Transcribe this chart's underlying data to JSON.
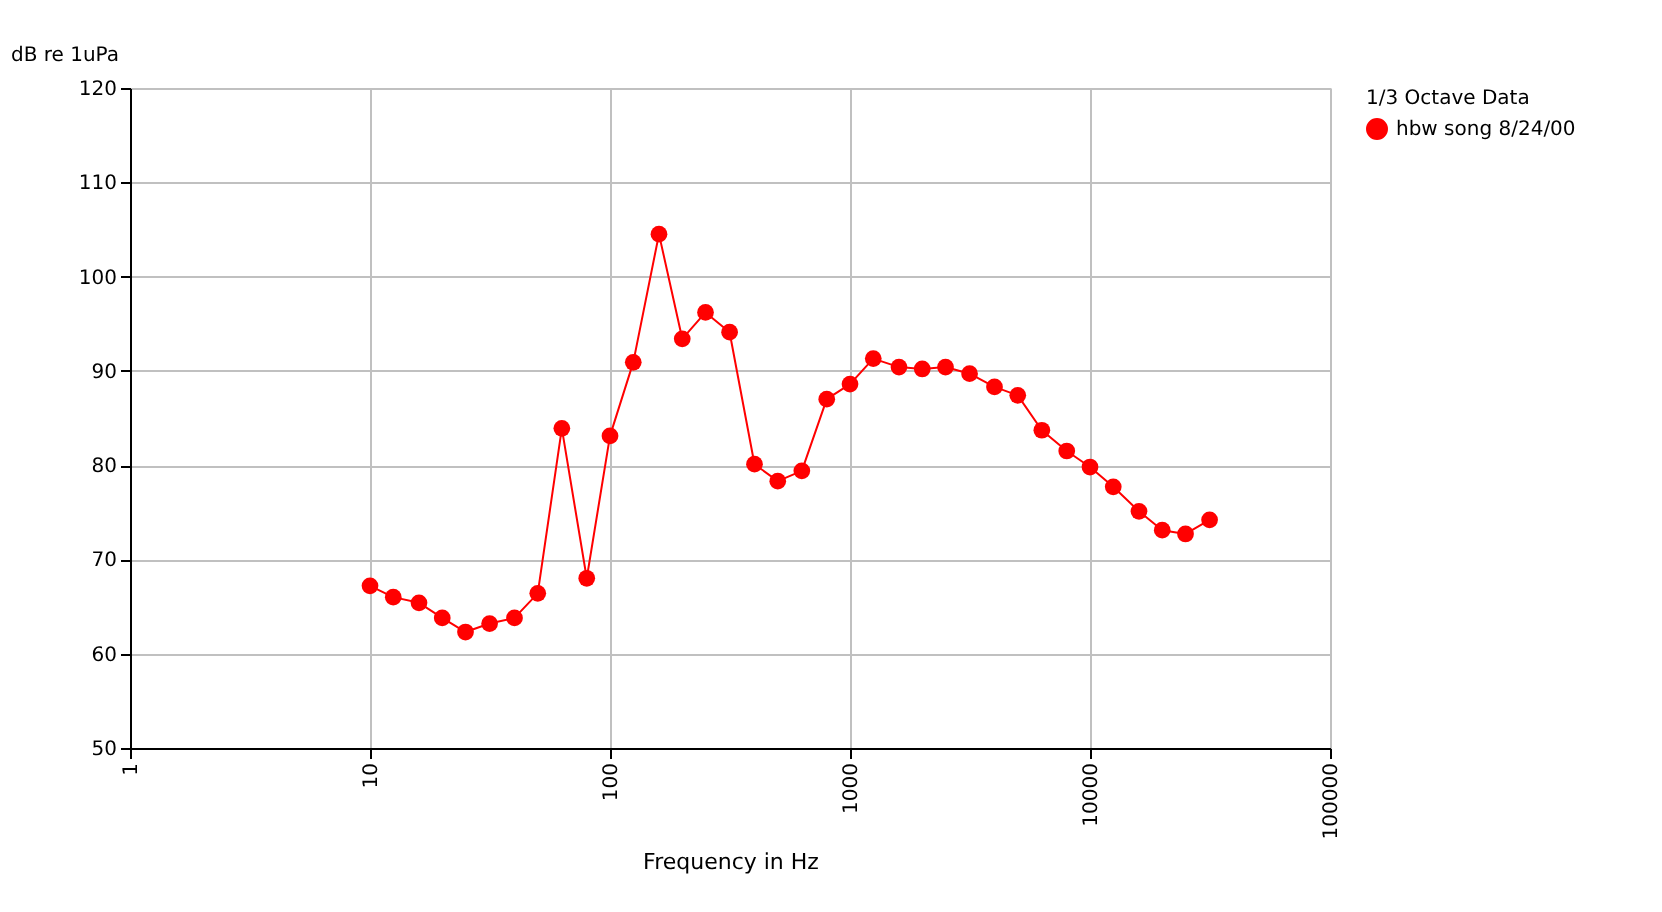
{
  "chart_data": {
    "type": "line",
    "xlabel": "Frequency in Hz",
    "ylabel": "dB re 1uPa",
    "legend_title": "1/3 Octave Data",
    "x": [
      10,
      12.5,
      16,
      20,
      25,
      31.5,
      40,
      50,
      63,
      80,
      100,
      125,
      160,
      200,
      250,
      315,
      400,
      500,
      630,
      800,
      1000,
      1250,
      1600,
      2000,
      2500,
      3150,
      4000,
      5000,
      6300,
      8000,
      10000,
      12500,
      16000,
      20000,
      25000,
      31500
    ],
    "series": [
      {
        "name": "hbw song 8/24/00",
        "color": "#ff0000",
        "values": [
          67.2,
          66.0,
          65.4,
          63.8,
          62.3,
          63.2,
          63.8,
          66.4,
          83.9,
          68.0,
          83.1,
          90.9,
          104.5,
          93.4,
          96.2,
          94.1,
          80.1,
          78.3,
          79.4,
          87.0,
          88.6,
          91.3,
          90.4,
          90.2,
          90.4,
          89.7,
          88.3,
          87.4,
          83.7,
          81.5,
          79.8,
          77.7,
          75.1,
          73.1,
          72.7,
          74.2
        ]
      }
    ],
    "log": "x",
    "xlim": [
      1,
      100000
    ],
    "xticks": [
      1,
      10,
      100,
      1000,
      10000,
      100000
    ],
    "ylim": [
      50,
      120
    ],
    "yticks": [
      50,
      60,
      70,
      80,
      90,
      100,
      110,
      120
    ],
    "grid": true,
    "legend": "right",
    "marker": "circle",
    "line_style": "solid"
  }
}
